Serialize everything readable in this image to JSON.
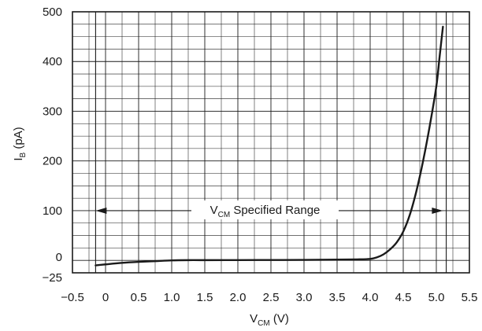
{
  "chart_data": {
    "type": "line",
    "xlabel_main": "V",
    "xlabel_sub": "CM",
    "xlabel_unit": " (V)",
    "ylabel_main": "I",
    "ylabel_sub": "B",
    "ylabel_unit": " (pA)",
    "xlim": [
      -0.5,
      5.5
    ],
    "ylim": [
      -25,
      500
    ],
    "x_ticks": [
      -0.5,
      0,
      0.5,
      1.0,
      1.5,
      2.0,
      2.5,
      3.0,
      3.5,
      4.0,
      4.5,
      5.0,
      5.5
    ],
    "x_tick_labels": [
      "−0.5",
      "0",
      "0.5",
      "1.0",
      "1.5",
      "2.0",
      "2.5",
      "3.0",
      "3.5",
      "4.0",
      "4.5",
      "5.0",
      "5.5"
    ],
    "y_ticks": [
      -25,
      0,
      100,
      200,
      300,
      400,
      500
    ],
    "y_tick_labels": [
      "−25",
      "0",
      "100",
      "200",
      "300",
      "400",
      "500"
    ],
    "grid": true,
    "series": [
      {
        "x": [
          -0.15,
          0.0,
          0.25,
          0.5,
          0.75,
          1.0,
          1.25,
          1.5,
          2.0,
          2.5,
          3.0,
          3.5,
          3.8,
          4.0,
          4.1,
          4.2,
          4.3,
          4.4,
          4.5,
          4.6,
          4.7,
          4.8,
          4.9,
          5.0,
          5.05,
          5.1
        ],
        "y": [
          -10,
          -8,
          -5,
          -3,
          -1.5,
          0,
          0.5,
          0.5,
          0.6,
          0.8,
          1,
          1.5,
          2,
          3,
          6,
          12,
          22,
          36,
          58,
          92,
          140,
          200,
          270,
          350,
          410,
          470
        ]
      }
    ],
    "annotation": {
      "main": "V",
      "sub": "CM",
      "rest": " Specified Range",
      "x_start": -0.15,
      "x_end": 5.1,
      "y": 100
    }
  }
}
